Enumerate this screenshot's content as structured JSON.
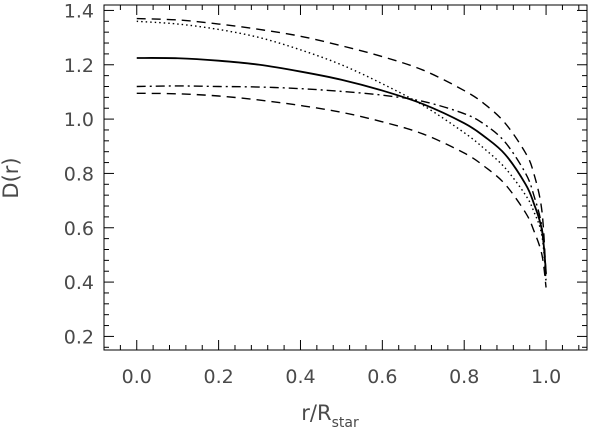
{
  "chart_data": {
    "type": "line",
    "title": "",
    "xlabel_main": "r/R",
    "xlabel_sub": "star",
    "ylabel": "D(r)",
    "xlim": [
      -0.08,
      1.1
    ],
    "ylim": [
      0.15,
      1.42
    ],
    "xticks": [
      0.0,
      0.2,
      0.4,
      0.6,
      0.8,
      1.0
    ],
    "xtick_labels": [
      "0.0",
      "0.2",
      "0.4",
      "0.6",
      "0.8",
      "1.0"
    ],
    "yticks": [
      0.2,
      0.4,
      0.6,
      0.8,
      1.0,
      1.2,
      1.4
    ],
    "ytick_labels": [
      "0.2",
      "0.4",
      "0.6",
      "0.8",
      "1.0",
      "1.2",
      "1.4"
    ],
    "series": [
      {
        "style": "dashed",
        "x": [
          0.0,
          0.1,
          0.2,
          0.3,
          0.4,
          0.5,
          0.6,
          0.7,
          0.8,
          0.85,
          0.9,
          0.95,
          0.97,
          0.99,
          1.0
        ],
        "y": [
          1.37,
          1.365,
          1.35,
          1.33,
          1.305,
          1.27,
          1.23,
          1.18,
          1.105,
          1.055,
          0.985,
          0.875,
          0.8,
          0.66,
          0.42
        ]
      },
      {
        "style": "dotted",
        "x": [
          0.0,
          0.1,
          0.2,
          0.3,
          0.4,
          0.5,
          0.6,
          0.7,
          0.8,
          0.85,
          0.9,
          0.95,
          0.97,
          0.99,
          1.0
        ],
        "y": [
          1.36,
          1.35,
          1.33,
          1.3,
          1.255,
          1.2,
          1.13,
          1.05,
          0.95,
          0.89,
          0.82,
          0.72,
          0.66,
          0.57,
          0.4
        ]
      },
      {
        "style": "solid",
        "x": [
          0.0,
          0.1,
          0.2,
          0.3,
          0.4,
          0.5,
          0.6,
          0.7,
          0.8,
          0.85,
          0.9,
          0.95,
          0.97,
          0.99,
          1.0
        ],
        "y": [
          1.225,
          1.224,
          1.215,
          1.2,
          1.175,
          1.145,
          1.105,
          1.055,
          0.985,
          0.935,
          0.87,
          0.76,
          0.69,
          0.59,
          0.43
        ]
      },
      {
        "style": "dashdot",
        "x": [
          0.0,
          0.1,
          0.2,
          0.3,
          0.4,
          0.5,
          0.6,
          0.7,
          0.8,
          0.85,
          0.9,
          0.95,
          0.97,
          0.99,
          1.0
        ],
        "y": [
          1.12,
          1.122,
          1.12,
          1.118,
          1.112,
          1.102,
          1.088,
          1.065,
          1.02,
          0.98,
          0.915,
          0.8,
          0.72,
          0.6,
          0.41
        ]
      },
      {
        "style": "dashed",
        "x": [
          0.0,
          0.1,
          0.2,
          0.3,
          0.4,
          0.5,
          0.6,
          0.7,
          0.8,
          0.85,
          0.9,
          0.95,
          0.97,
          0.99,
          1.0
        ],
        "y": [
          1.095,
          1.093,
          1.085,
          1.07,
          1.05,
          1.025,
          0.99,
          0.945,
          0.875,
          0.825,
          0.76,
          0.655,
          0.59,
          0.5,
          0.38
        ]
      }
    ]
  }
}
